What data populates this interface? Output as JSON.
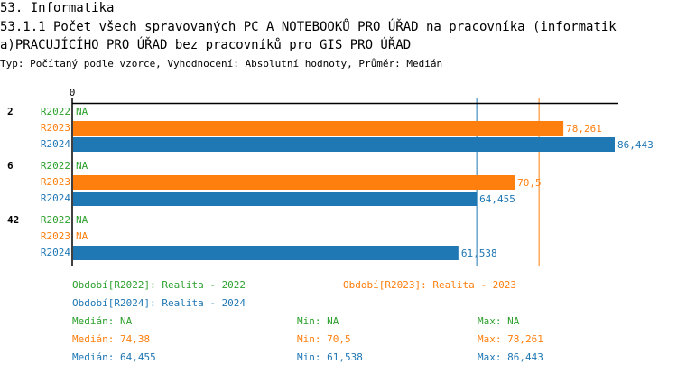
{
  "header": {
    "section": "53. Informatika",
    "title_line1": "53.1.1 Počet všech spravovaných PC A NOTEBOOKŮ PRO ÚŘAD na pracovníka (informatik",
    "title_line2": "a)PRACUJÍCÍHO PRO ÚŘAD bez pracovníků pro GIS PRO ÚŘAD",
    "subtitle": "Typ: Počítaný podle vzorce, Vyhodnocení: Absolutní hodnoty, Průměr: Medián"
  },
  "chart_data": {
    "type": "bar",
    "orientation": "horizontal",
    "x_tick_label": "0",
    "xlim": [
      0,
      86.443
    ],
    "colors": {
      "R2022": "#2ca02c",
      "R2023": "#ff7f0e",
      "R2024": "#1f77b4"
    },
    "groups": [
      {
        "label": "2",
        "bars": [
          {
            "series": "R2022",
            "value": null,
            "label": "NA"
          },
          {
            "series": "R2023",
            "value": 78.261,
            "label": "78,261"
          },
          {
            "series": "R2024",
            "value": 86.443,
            "label": "86,443"
          }
        ]
      },
      {
        "label": "6",
        "bars": [
          {
            "series": "R2022",
            "value": null,
            "label": "NA"
          },
          {
            "series": "R2023",
            "value": 70.5,
            "label": "70,5"
          },
          {
            "series": "R2024",
            "value": 64.455,
            "label": "64,455"
          }
        ]
      },
      {
        "label": "42",
        "bars": [
          {
            "series": "R2022",
            "value": null,
            "label": "NA"
          },
          {
            "series": "R2023",
            "value": null,
            "label": "NA"
          },
          {
            "series": "R2024",
            "value": 61.538,
            "label": "61,538"
          }
        ]
      }
    ],
    "median_lines": [
      {
        "series": "R2023",
        "value": 74.38
      },
      {
        "series": "R2024",
        "value": 64.455
      }
    ]
  },
  "legend": {
    "periods": [
      {
        "text": "Období[R2022]: Realita - 2022",
        "color": "#2ca02c"
      },
      {
        "text": "Období[R2023]: Realita - 2023",
        "color": "#ff7f0e"
      },
      {
        "text": "Období[R2024]: Realita - 2024",
        "color": "#1f77b4"
      }
    ],
    "stats": [
      {
        "median": "Medián: NA",
        "min": "Min: NA",
        "max": "Max: NA",
        "color": "#2ca02c"
      },
      {
        "median": "Medián: 74,38",
        "min": "Min: 70,5",
        "max": "Max: 78,261",
        "color": "#ff7f0e"
      },
      {
        "median": "Medián: 64,455",
        "min": "Min: 61,538",
        "max": "Max: 86,443",
        "color": "#1f77b4"
      }
    ]
  }
}
